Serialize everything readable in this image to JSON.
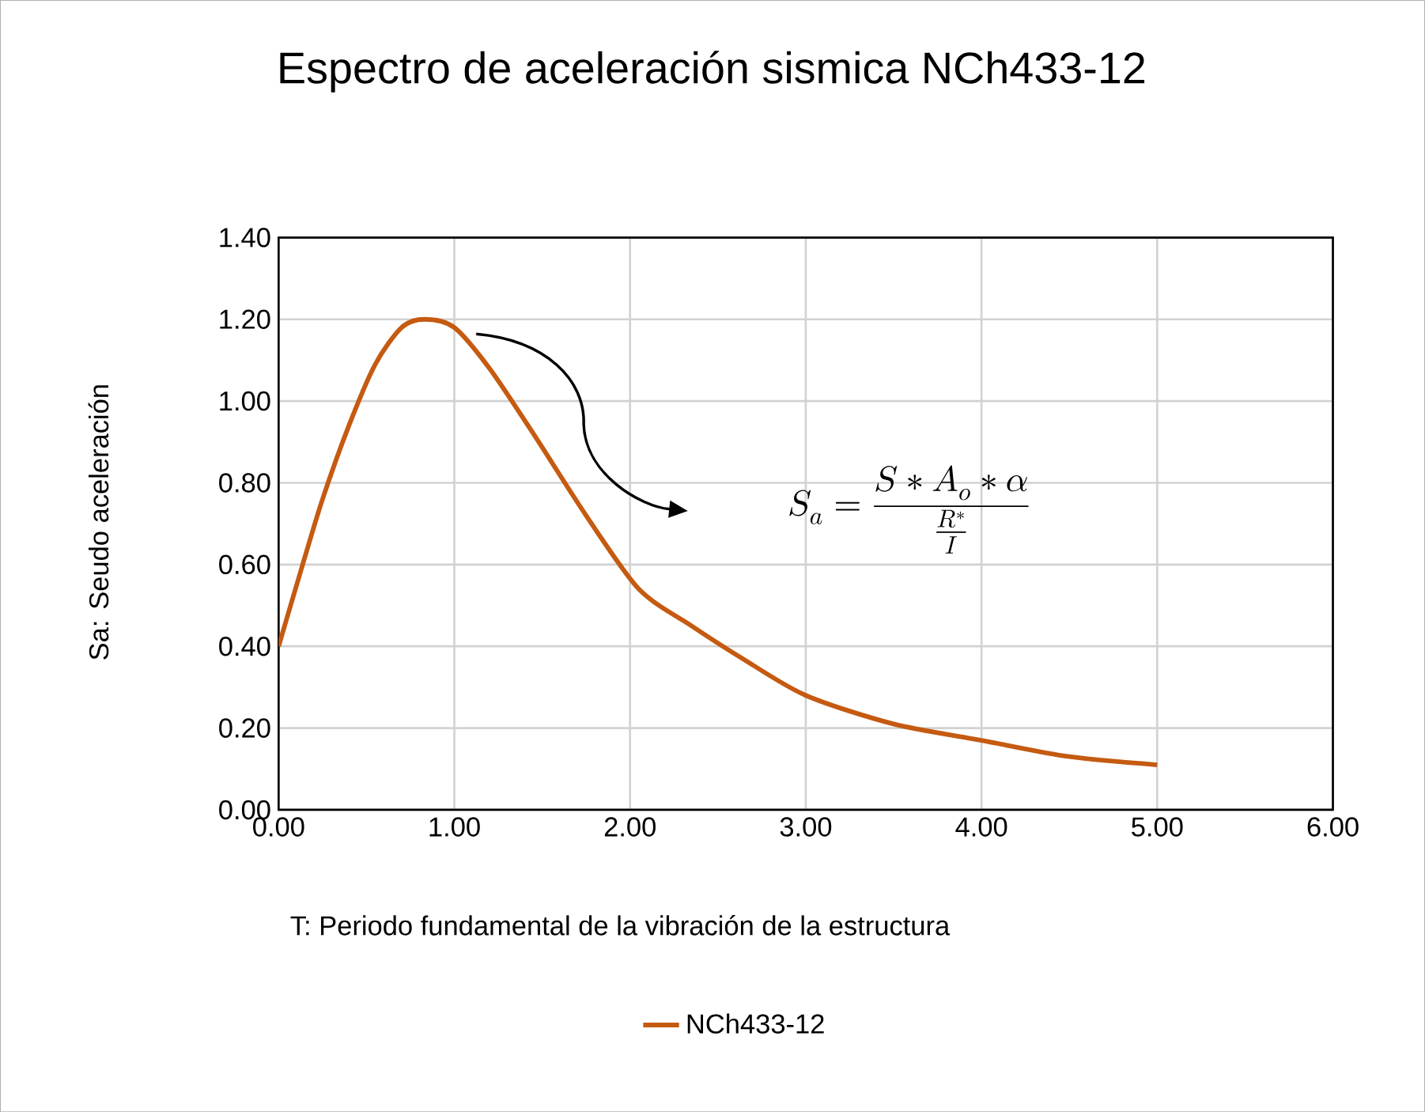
{
  "chart_data": {
    "type": "line",
    "title": "Espectro de aceleración sismica NCh433-12",
    "xlabel": "T: Periodo fundamental de la vibración de la estructura",
    "ylabel": "Sa: Seudo aceleración",
    "series": [
      {
        "name": "NCh433-12",
        "color": "#c55a11",
        "x": [
          0,
          0.13,
          0.25,
          0.4,
          0.55,
          0.7,
          0.83,
          1.0,
          1.2,
          1.45,
          1.75,
          2.05,
          2.35,
          2.64,
          3.0,
          3.5,
          4.0,
          4.5,
          5.0
        ],
        "values": [
          0.4,
          0.59,
          0.76,
          0.94,
          1.09,
          1.18,
          1.2,
          1.18,
          1.08,
          0.92,
          0.72,
          0.54,
          0.45,
          0.37,
          0.28,
          0.21,
          0.17,
          0.13,
          0.11
        ]
      }
    ],
    "xlim": [
      0,
      6
    ],
    "ylim": [
      0,
      1.4
    ],
    "xticks": [
      {
        "value": 0,
        "label": "0.00"
      },
      {
        "value": 1,
        "label": "1.00"
      },
      {
        "value": 2,
        "label": "2.00"
      },
      {
        "value": 3,
        "label": "3.00"
      },
      {
        "value": 4,
        "label": "4.00"
      },
      {
        "value": 5,
        "label": "5.00"
      },
      {
        "value": 6,
        "label": "6.00"
      }
    ],
    "yticks": [
      {
        "value": 0,
        "label": "0.00"
      },
      {
        "value": 0.2,
        "label": "0.20"
      },
      {
        "value": 0.4,
        "label": "0.40"
      },
      {
        "value": 0.6,
        "label": "0.60"
      },
      {
        "value": 0.8,
        "label": "0.80"
      },
      {
        "value": 1.0,
        "label": "1.00"
      },
      {
        "value": 1.2,
        "label": "1.20"
      },
      {
        "value": 1.4,
        "label": "1.40"
      }
    ],
    "annotations": [
      "S_a=\\frac{S*A_o*\\alpha}{\\frac{R^*}{I}}"
    ],
    "grid": true,
    "legend": "bottom",
    "marker": "none",
    "line_style": "solid"
  }
}
